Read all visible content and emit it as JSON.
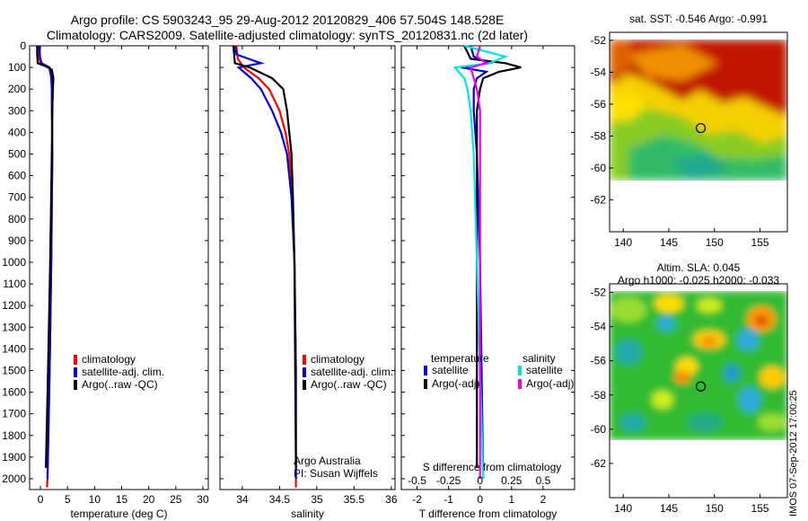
{
  "header": {
    "line1": "Argo profile: CS 5903243_95 29-Aug-2012 20120829_406 57.504S 148.528E",
    "line2": "Climatology: CARS2009. Satellite-adjusted climatology: synTS_20120831.nc (2d later)"
  },
  "colors": {
    "climatology": "#ff0000",
    "satellite": "#0000dd",
    "argo": "#000000",
    "sal_sat": "#00e5e5",
    "sal_argo": "#ee00ee"
  },
  "chart_data": [
    {
      "id": "temperature",
      "type": "line",
      "xlabel": "temperature (deg C)",
      "xlim": [
        -2,
        31
      ],
      "xticks": [
        0,
        5,
        10,
        15,
        20,
        25,
        30
      ],
      "ylim": [
        0,
        2050
      ],
      "yticks": [
        0,
        100,
        200,
        300,
        400,
        500,
        600,
        700,
        800,
        900,
        1000,
        1100,
        1200,
        1300,
        1400,
        1500,
        1600,
        1700,
        1800,
        1900,
        2000
      ],
      "legend": [
        "climatology",
        "satellite-adj. clim.",
        "Argo(..raw -QC)"
      ],
      "series": [
        {
          "name": "climatology",
          "color": "climatology",
          "depth": [
            0,
            50,
            80,
            100,
            150,
            200,
            300,
            500,
            1000,
            1500,
            2000,
            2040
          ],
          "values": [
            -0.4,
            -0.3,
            0.0,
            1.6,
            2.1,
            2.2,
            2.2,
            2.2,
            2.0,
            1.7,
            1.3,
            1.2
          ]
        },
        {
          "name": "satellite-adj. clim.",
          "color": "satellite",
          "depth": [
            0,
            50,
            80,
            100,
            150,
            200,
            300,
            500,
            1000,
            1500,
            2000
          ],
          "values": [
            -0.2,
            -0.1,
            0.2,
            1.7,
            2.0,
            2.1,
            2.1,
            2.2,
            2.0,
            1.7,
            1.3
          ]
        },
        {
          "name": "Argo(..raw -QC)",
          "color": "argo",
          "depth": [
            0,
            40,
            80,
            95,
            110,
            150,
            200,
            300,
            500,
            1000,
            1500,
            1950
          ],
          "values": [
            -0.6,
            -0.6,
            -0.5,
            1.0,
            2.1,
            2.4,
            2.3,
            2.2,
            2.1,
            1.8,
            1.4,
            1.0
          ]
        }
      ]
    },
    {
      "id": "salinity",
      "type": "line",
      "xlabel": "salinity",
      "xlim": [
        33.7,
        36.05
      ],
      "xticks": [
        34,
        34.5,
        35,
        35.5,
        36
      ],
      "xticklabels": [
        "34",
        "34.5",
        "35",
        "35.5",
        "36"
      ],
      "ylim": [
        0,
        2050
      ],
      "legend": [
        "climatology",
        "satellite-adj. clim.",
        "Argo(..raw -QC)"
      ],
      "annotation": [
        "Argo Australia",
        "PI: Susan Wijffels"
      ],
      "series": [
        {
          "name": "climatology",
          "color": "climatology",
          "depth": [
            0,
            60,
            100,
            150,
            200,
            300,
            400,
            500,
            700,
            1000,
            1500,
            2040
          ],
          "values": [
            33.92,
            33.94,
            34.02,
            34.22,
            34.36,
            34.5,
            34.58,
            34.63,
            34.67,
            34.7,
            34.72,
            34.72
          ]
        },
        {
          "name": "satellite-adj. clim.",
          "color": "satellite",
          "depth": [
            0,
            40,
            80,
            100,
            150,
            200,
            300,
            400,
            500,
            700,
            1000,
            1500,
            2000
          ],
          "values": [
            33.9,
            33.92,
            34.25,
            33.95,
            34.12,
            34.25,
            34.4,
            34.52,
            34.6,
            34.66,
            34.7,
            34.72,
            34.72
          ]
        },
        {
          "name": "Argo(..raw -QC)",
          "color": "argo",
          "depth": [
            0,
            40,
            80,
            100,
            150,
            200,
            300,
            400,
            500,
            700,
            1000,
            1500,
            1950
          ],
          "values": [
            33.88,
            33.89,
            33.9,
            34.1,
            34.4,
            34.55,
            34.6,
            34.63,
            34.66,
            34.68,
            34.7,
            34.71,
            34.72
          ]
        }
      ]
    },
    {
      "id": "difference",
      "type": "line",
      "xlabel": "T difference from climatology",
      "xlabel_top": "S difference from climatology",
      "xlim": [
        -2.5,
        3
      ],
      "xticks": [
        -2,
        -1,
        0,
        1,
        2
      ],
      "xticks_top": [
        -0.5,
        -0.25,
        0,
        0.25,
        0.5
      ],
      "ylim": [
        0,
        2050
      ],
      "legend_headers": [
        "temperature",
        "salinity"
      ],
      "legend": [
        "satellite",
        "Argo(-adj)",
        "satellite",
        "Argo(-adj)"
      ],
      "series": [
        {
          "name": "satellite",
          "color": "satellite",
          "depth": [
            0,
            50,
            80,
            100,
            120,
            150,
            200,
            300,
            500,
            1000,
            2000
          ],
          "values": [
            -0.3,
            -0.2,
            0.3,
            -0.6,
            0.2,
            -0.1,
            -0.2,
            -0.2,
            -0.1,
            0.0,
            0.1
          ]
        },
        {
          "name": "Argo(-adj)",
          "color": "argo",
          "depth": [
            0,
            30,
            60,
            80,
            100,
            120,
            150,
            200,
            300,
            500,
            1000,
            1500,
            1950
          ],
          "values": [
            -0.5,
            -0.4,
            -0.3,
            0.8,
            1.3,
            0.6,
            0.1,
            0.0,
            -0.1,
            -0.1,
            -0.1,
            -0.1,
            -0.1
          ]
        },
        {
          "name": "satellite",
          "color": "sal_sat",
          "depth": [
            0,
            50,
            80,
            100,
            150,
            200,
            300,
            500,
            1000,
            2000
          ],
          "values": [
            -0.5,
            0.8,
            0.3,
            -0.8,
            -0.5,
            -0.4,
            -0.3,
            -0.2,
            -0.1,
            0.1
          ]
        },
        {
          "name": "Argo(-adj)",
          "color": "sal_argo",
          "depth": [
            0,
            50,
            80,
            100,
            150,
            200,
            300,
            500,
            1000,
            2000
          ],
          "values": [
            0.0,
            -0.1,
            0.2,
            -0.3,
            -0.2,
            -0.1,
            0.0,
            0.0,
            0.0,
            0.0
          ]
        }
      ]
    },
    {
      "id": "sst-map",
      "type": "heatmap",
      "title": "sat. SST: -0.546 Argo: -0.991",
      "xlim": [
        138.5,
        158
      ],
      "ylim": [
        -64,
        -51.5
      ],
      "xticks": [
        140,
        145,
        150,
        155
      ],
      "yticks": [
        -52,
        -54,
        -56,
        -58,
        -60,
        -62
      ],
      "marker": [
        148.5,
        -57.5
      ]
    },
    {
      "id": "sla-map",
      "type": "heatmap",
      "title": [
        "Altim. SLA: 0.045",
        "Argo h1000: -0.025 h2000: -0.033"
      ],
      "xlim": [
        138.5,
        158
      ],
      "ylim": [
        -64,
        -51.5
      ],
      "xticks": [
        140,
        145,
        150,
        155
      ],
      "yticks": [
        -52,
        -54,
        -56,
        -58,
        -60,
        -62
      ],
      "marker": [
        148.5,
        -57.5
      ]
    }
  ],
  "footer": {
    "stamp": "IMOS 07-Sep-2012 17:00:25"
  }
}
